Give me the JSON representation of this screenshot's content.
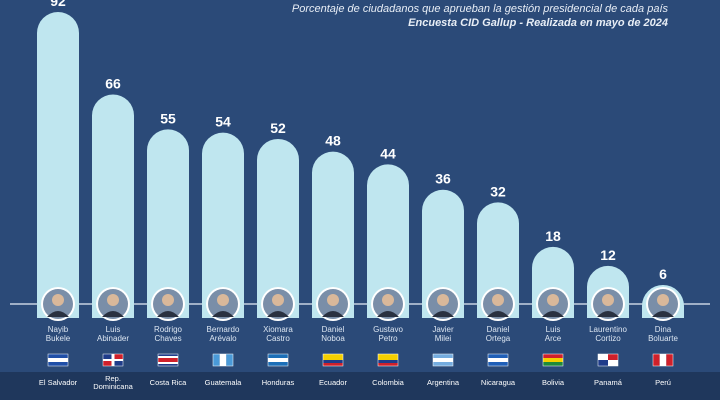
{
  "header": {
    "subtitle_line1": "Porcentaje de ciudadanos que aprueban la gestión presidencial de cada país",
    "subtitle_line2": "Encuesta CID Gallup - Realizada en mayo de 2024"
  },
  "colors": {
    "background": "#2b4a78",
    "bar": "#bfe6ef",
    "value_text": "#ffffff",
    "name_text": "#dce6f2",
    "country_text": "#ffffff",
    "footer_band": "#1f375c"
  },
  "chart_data": {
    "type": "bar",
    "ylim": [
      0,
      92
    ],
    "grid": false,
    "categories": [
      "Nayib Bukele",
      "Luis Abinader",
      "Rodrigo Chaves",
      "Bernardo Arévalo",
      "Xiomara Castro",
      "Daniel Noboa",
      "Gustavo Petro",
      "Javier Milei",
      "Daniel Ortega",
      "Luis Arce",
      "Laurentino Cortizo",
      "Dina Boluarte"
    ],
    "values": [
      92,
      66,
      55,
      54,
      52,
      48,
      44,
      36,
      32,
      18,
      12,
      6
    ],
    "name_lines": [
      [
        "Nayib",
        "Bukele"
      ],
      [
        "Luis",
        "Abinader"
      ],
      [
        "Rodrigo",
        "Chaves"
      ],
      [
        "Bernardo",
        "Arévalo"
      ],
      [
        "Xiomara",
        "Castro"
      ],
      [
        "Daniel",
        "Noboa"
      ],
      [
        "Gustavo",
        "Petro"
      ],
      [
        "Javier",
        "Milei"
      ],
      [
        "Daniel",
        "Ortega"
      ],
      [
        "Luis",
        "Arce"
      ],
      [
        "Laurentino",
        "Cortizo"
      ],
      [
        "Dina",
        "Boluarte"
      ]
    ],
    "countries": [
      [
        "El Salvador"
      ],
      [
        "Rep.",
        "Dominicana"
      ],
      [
        "Costa Rica"
      ],
      [
        "Guatemala"
      ],
      [
        "Honduras"
      ],
      [
        "Ecuador"
      ],
      [
        "Colombia"
      ],
      [
        "Argentina"
      ],
      [
        "Nicaragua"
      ],
      [
        "Bolivia"
      ],
      [
        "Panamá"
      ],
      [
        "Perú"
      ]
    ],
    "flags": [
      {
        "type": "h",
        "stripes": [
          "#1f4fa8",
          "#ffffff",
          "#1f4fa8"
        ]
      },
      {
        "type": "dr"
      },
      {
        "type": "h",
        "stripes": [
          "#1f3c8a",
          "#ffffff",
          "#d0202a",
          "#ffffff",
          "#1f3c8a"
        ],
        "weights": [
          1,
          1,
          2,
          1,
          1
        ]
      },
      {
        "type": "v",
        "stripes": [
          "#4a9ad8",
          "#ffffff",
          "#4a9ad8"
        ]
      },
      {
        "type": "h",
        "stripes": [
          "#1c6fb8",
          "#ffffff",
          "#1c6fb8"
        ]
      },
      {
        "type": "h",
        "stripes": [
          "#f5d000",
          "#1f3c8a",
          "#d0202a"
        ],
        "weights": [
          2,
          1,
          1
        ]
      },
      {
        "type": "h",
        "stripes": [
          "#f5d000",
          "#1f3c8a",
          "#d0202a"
        ],
        "weights": [
          2,
          1,
          1
        ]
      },
      {
        "type": "h",
        "stripes": [
          "#74acdf",
          "#ffffff",
          "#74acdf"
        ]
      },
      {
        "type": "h",
        "stripes": [
          "#1f5fb8",
          "#ffffff",
          "#1f5fb8"
        ]
      },
      {
        "type": "h",
        "stripes": [
          "#d0202a",
          "#f5d000",
          "#1f8a3a"
        ]
      },
      {
        "type": "pa"
      },
      {
        "type": "v",
        "stripes": [
          "#d0202a",
          "#ffffff",
          "#d0202a"
        ]
      }
    ]
  }
}
